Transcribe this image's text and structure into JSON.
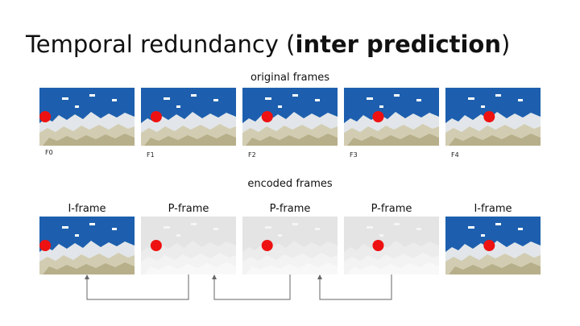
{
  "title": {
    "prefix": "Temporal redundancy (",
    "bold": "inter prediction",
    "suffix": ")"
  },
  "original": {
    "heading": "original frames",
    "frames": [
      {
        "label": "F0",
        "ball": 0.06
      },
      {
        "label": "F1",
        "ball": 0.16
      },
      {
        "label": "F2",
        "ball": 0.26
      },
      {
        "label": "F3",
        "ball": 0.36
      },
      {
        "label": "F4",
        "ball": 0.46
      }
    ]
  },
  "encoded": {
    "heading": "encoded frames",
    "frames": [
      {
        "type": "I-frame",
        "kind": "I",
        "ball": 0.06
      },
      {
        "type": "P-frame",
        "kind": "P",
        "ball": 0.16
      },
      {
        "type": "P-frame",
        "kind": "P",
        "ball": 0.26
      },
      {
        "type": "P-frame",
        "kind": "P",
        "ball": 0.36
      },
      {
        "type": "I-frame",
        "kind": "I",
        "ball": 0.46
      }
    ]
  },
  "colors": {
    "sky": "#1d5fae",
    "ball": "#ee1111",
    "rock": "#d2cdb2",
    "ghost": "#e4e4e4",
    "arrow": "#666666"
  }
}
